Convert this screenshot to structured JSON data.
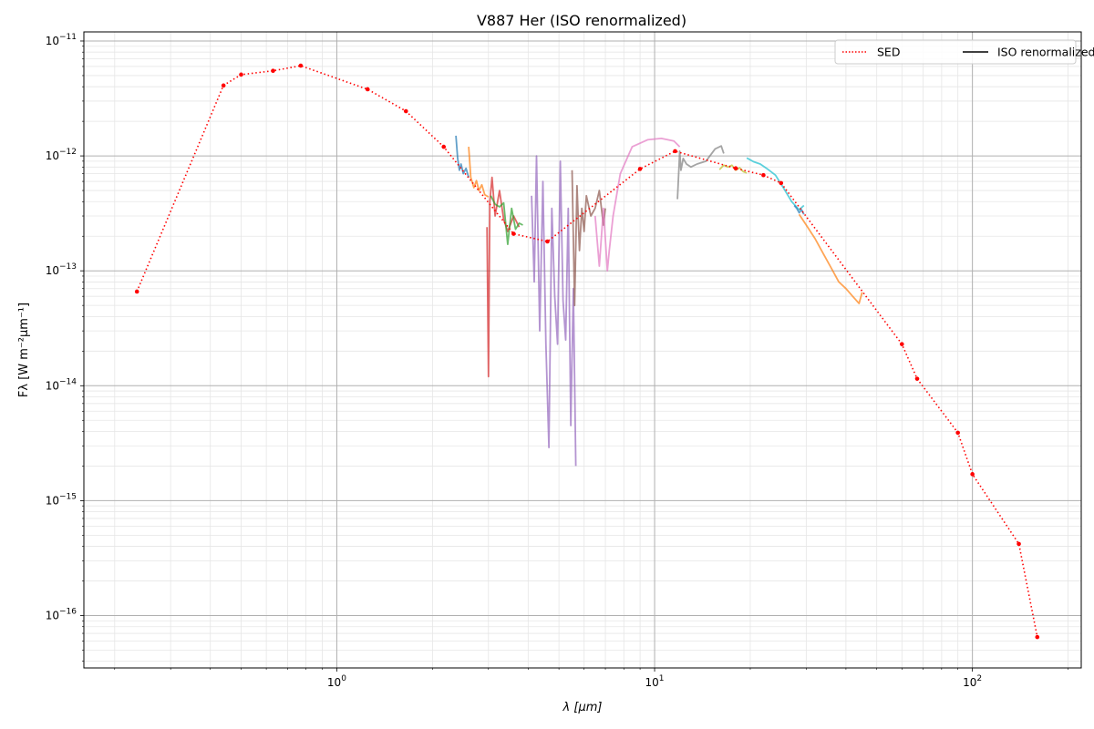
{
  "chart_data": {
    "type": "line",
    "title": "V887 Her (ISO renormalized)",
    "xlabel": "λ [μm]",
    "ylabel": "Fλ [W m⁻²μm⁻¹]",
    "xscale": "log",
    "yscale": "log",
    "xlim": [
      0.16,
      220
    ],
    "ylim": [
      3.5e-17,
      1.2e-11
    ],
    "grid": true,
    "legend_position": "top-right",
    "x_ticks": [
      {
        "value": 1,
        "base": "10",
        "exp": "0"
      },
      {
        "value": 10,
        "base": "10",
        "exp": "1"
      },
      {
        "value": 100,
        "base": "10",
        "exp": "2"
      }
    ],
    "y_ticks": [
      {
        "value": 1e-11,
        "base": "10",
        "exp": "−11"
      },
      {
        "value": 1e-12,
        "base": "10",
        "exp": "−12"
      },
      {
        "value": 1e-13,
        "base": "10",
        "exp": "−13"
      },
      {
        "value": 1e-14,
        "base": "10",
        "exp": "−14"
      },
      {
        "value": 1e-15,
        "base": "10",
        "exp": "−15"
      },
      {
        "value": 1e-16,
        "base": "10",
        "exp": "−16"
      }
    ],
    "legend": [
      {
        "label": "SED",
        "color": "#ff0000",
        "style": "dotted"
      },
      {
        "label": "ISO renormalized",
        "color": "#000000",
        "style": "solid"
      }
    ],
    "sed": {
      "name": "SED",
      "color": "#ff0000",
      "x": [
        0.235,
        0.44,
        0.5,
        0.63,
        0.77,
        1.25,
        1.65,
        2.17,
        9.0,
        11.6,
        18.0,
        22.0,
        25.0,
        60.0,
        67.0,
        90.0,
        100.0,
        140.0,
        160.0
      ],
      "y": [
        6.6e-14,
        4.1e-12,
        5.1e-12,
        5.5e-12,
        6.1e-12,
        3.8e-12,
        2.45e-12,
        1.2e-12,
        7.7e-13,
        1.1e-12,
        7.8e-13,
        6.8e-13,
        5.8e-13,
        2.3e-14,
        1.15e-14,
        3.9e-15,
        1.7e-15,
        4.2e-16,
        6.5e-17
      ],
      "x_mid": [
        3.6,
        4.6
      ],
      "y_mid": [
        2.1e-13,
        1.8e-13
      ]
    },
    "iso_segments": [
      {
        "color": "#1f77b4",
        "x": [
          2.37,
          2.4,
          2.43,
          2.46,
          2.5,
          2.55,
          2.6
        ],
        "y": [
          1.5e-12,
          9.5e-13,
          7.5e-13,
          8.5e-13,
          7e-13,
          7.8e-13,
          6.5e-13
        ]
      },
      {
        "color": "#ff7f0e",
        "x": [
          2.6,
          2.64,
          2.7,
          2.75,
          2.8,
          2.86,
          2.92,
          3.0
        ],
        "y": [
          1.2e-12,
          6.5e-13,
          5.3e-13,
          6.1e-13,
          5e-13,
          5.6e-13,
          4.6e-13,
          4.4e-13
        ]
      },
      {
        "color": "#d62728",
        "x": [
          2.97,
          3.0,
          3.03,
          3.08,
          3.15,
          3.25,
          3.35,
          3.45,
          3.6,
          3.75
        ],
        "y": [
          2.4e-13,
          1.2e-14,
          4e-13,
          6.5e-13,
          3e-13,
          5e-13,
          2.8e-13,
          2.2e-13,
          3e-13,
          2.4e-13
        ]
      },
      {
        "color": "#2ca02c",
        "x": [
          3.05,
          3.15,
          3.25,
          3.35,
          3.45,
          3.55,
          3.65,
          3.75,
          3.85
        ],
        "y": [
          4.5e-13,
          3.8e-13,
          3.6e-13,
          3.9e-13,
          1.7e-13,
          3.5e-13,
          2.3e-13,
          2.6e-13,
          2.5e-13
        ]
      },
      {
        "color": "#9467bd",
        "x": [
          4.1,
          4.18,
          4.25,
          4.35,
          4.45,
          4.55,
          4.65,
          4.75,
          4.85,
          4.95,
          5.05,
          5.15,
          5.25,
          5.35,
          5.45,
          5.55,
          5.65
        ],
        "y": [
          4.5e-13,
          8e-14,
          1e-12,
          3e-14,
          6e-13,
          2.3e-14,
          2.9e-15,
          3.5e-13,
          6e-14,
          2.3e-14,
          9e-13,
          5.5e-14,
          2.5e-14,
          3.5e-13,
          4.5e-15,
          7e-14,
          2e-15
        ]
      },
      {
        "color": "#8c564b",
        "x": [
          5.5,
          5.6,
          5.7,
          5.8,
          5.9,
          6.0,
          6.1,
          6.3,
          6.5,
          6.7,
          6.9,
          7.0
        ],
        "y": [
          7.5e-13,
          5e-14,
          5.5e-13,
          1.5e-13,
          3.5e-13,
          2.2e-13,
          4.5e-13,
          3e-13,
          3.5e-13,
          5e-13,
          2.5e-13,
          3.5e-13
        ]
      },
      {
        "color": "#e377c2",
        "x": [
          6.5,
          6.7,
          6.9,
          7.1,
          7.2,
          7.4,
          7.8,
          8.5,
          9.5,
          10.5,
          11.5,
          12.0
        ],
        "y": [
          3e-13,
          1.1e-13,
          3.5e-13,
          1e-13,
          1.5e-13,
          3e-13,
          7e-13,
          1.2e-12,
          1.38e-12,
          1.42e-12,
          1.35e-12,
          1.2e-12
        ]
      },
      {
        "color": "#7f7f7f",
        "x": [
          11.8,
          12.0,
          12.1,
          12.3,
          12.6,
          13.0,
          13.6,
          14.5,
          15.5,
          16.2,
          16.5
        ],
        "y": [
          4.2e-13,
          1.1e-12,
          7.5e-13,
          9.5e-13,
          8.5e-13,
          8e-13,
          8.5e-13,
          9e-13,
          1.15e-12,
          1.22e-12,
          1.05e-12
        ]
      },
      {
        "color": "#bcbd22",
        "x": [
          16.0,
          16.5,
          17.0,
          17.5,
          18.0,
          18.5,
          19.0,
          19.5
        ],
        "y": [
          7.6e-13,
          8.3e-13,
          8e-13,
          8.3e-13,
          7.5e-13,
          7.9e-13,
          7.3e-13,
          7.1e-13
        ]
      },
      {
        "color": "#17becf",
        "x": [
          19.5,
          20.5,
          21.5,
          22.5,
          24.0,
          25.5,
          27.0,
          28.5,
          29.5
        ],
        "y": [
          9.6e-13,
          8.9e-13,
          8.5e-13,
          7.8e-13,
          6.8e-13,
          5.2e-13,
          4e-13,
          3.4e-13,
          3.7e-13
        ]
      },
      {
        "color": "#1f77b4",
        "x": [
          27.5,
          28.0,
          28.5,
          29.0,
          29.5
        ],
        "y": [
          3.7e-13,
          3.5e-13,
          3.2e-13,
          3.4e-13,
          3.1e-13
        ]
      },
      {
        "color": "#ff7f0e",
        "x": [
          28.5,
          30.0,
          32.0,
          34.0,
          36.0,
          38.0,
          40.0,
          42.0,
          44.0,
          45.0
        ],
        "y": [
          3.1e-13,
          2.5e-13,
          1.9e-13,
          1.4e-13,
          1.05e-13,
          8e-14,
          7e-14,
          6e-14,
          5.2e-14,
          6.5e-14
        ]
      }
    ]
  }
}
